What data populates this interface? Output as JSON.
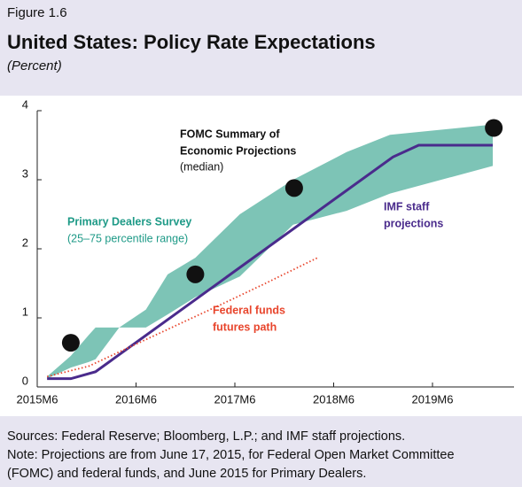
{
  "chart_data": {
    "type": "line",
    "figure": "Figure 1.6",
    "title": "United States: Policy Rate Expectations",
    "subtitle": "(Percent)",
    "xlim": [
      2015.5,
      2020.325
    ],
    "xticks": [
      {
        "value": 2015.5,
        "label": "2015M6"
      },
      {
        "value": 2016.5,
        "label": "2016M6"
      },
      {
        "value": 2017.5,
        "label": "2017M6"
      },
      {
        "value": 2018.5,
        "label": "2018M6"
      },
      {
        "value": 2019.5,
        "label": "2019M6"
      }
    ],
    "ylim": [
      0,
      4
    ],
    "yticks": [
      0,
      1,
      2,
      3,
      4
    ],
    "band": {
      "color": "#7dc4b6",
      "x": [
        2015.6,
        2015.84,
        2016.02,
        2016.09,
        2016.33,
        2016.6,
        2016.82,
        2017.1,
        2017.55,
        2018.09,
        2018.63,
        2019.07,
        2020.11
      ],
      "lower": [
        0.12,
        0.28,
        0.36,
        0.4,
        0.86,
        0.86,
        1.05,
        1.3,
        1.6,
        2.35,
        2.55,
        2.8,
        3.2
      ],
      "upper": [
        0.15,
        0.45,
        0.75,
        0.86,
        0.86,
        1.12,
        1.63,
        1.87,
        2.5,
        3.0,
        3.4,
        3.65,
        3.8
      ]
    },
    "series": [
      {
        "color": "#4a2b8c",
        "x": [
          2015.6,
          2015.84,
          2016.09,
          2019.1,
          2019.36,
          2020.11
        ],
        "values": [
          0.12,
          0.12,
          0.22,
          3.33,
          3.5,
          3.5
        ]
      },
      {
        "color": "#e8452c",
        "dotted": true,
        "x": [
          2015.6,
          2016.02,
          2016.47,
          2016.92,
          2017.37,
          2017.81,
          2018.35
        ],
        "values": [
          0.15,
          0.3,
          0.6,
          0.9,
          1.2,
          1.5,
          1.88
        ]
      }
    ],
    "points": {
      "color": "#111",
      "x": [
        2015.84,
        2017.1,
        2018.1,
        2020.12
      ],
      "values": [
        0.64,
        1.63,
        2.88,
        3.75
      ]
    },
    "annotations": [
      "FOMC Summary of",
      "Economic Projections",
      "(median)",
      "Primary Dealers Survey",
      "(25–75 percentile range)",
      "IMF staff",
      "projections",
      "Federal funds",
      "futures path"
    ],
    "notes": [
      "Sources: Federal Reserve; Bloomberg, L.P.; and IMF staff projections.",
      "Note: Projections are from June 17, 2015, for Federal Open Market Committee",
      "(FOMC) and federal funds, and June 2015 for Primary Dealers."
    ]
  }
}
